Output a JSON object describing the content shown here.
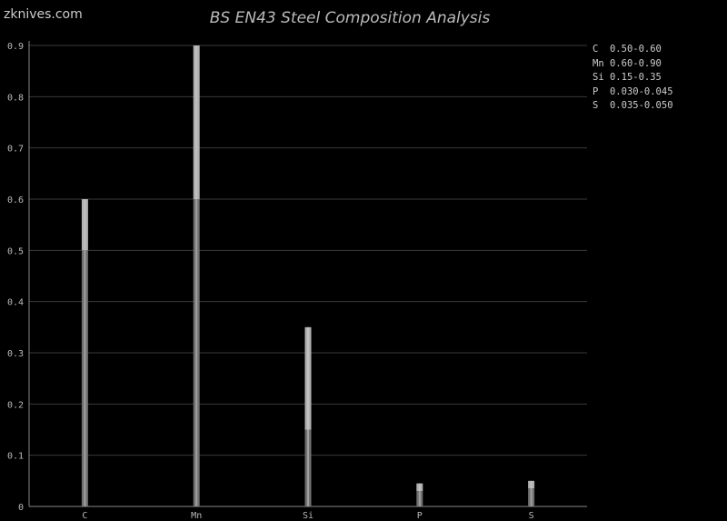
{
  "watermark": "zknives.com",
  "chart_data": {
    "type": "bar",
    "title": "BS EN43 Steel Composition Analysis",
    "categories": [
      "C",
      "Mn",
      "Si",
      "P",
      "S"
    ],
    "series": [
      {
        "role": "min",
        "values": [
          0.5,
          0.6,
          0.15,
          0.03,
          0.035
        ]
      },
      {
        "role": "max",
        "values": [
          0.6,
          0.9,
          0.35,
          0.045,
          0.05
        ]
      }
    ],
    "ylim": [
      0,
      0.9
    ],
    "yticks": [
      "0",
      "0.1",
      "0.2",
      "0.3",
      "0.4",
      "0.5",
      "0.6",
      "0.7",
      "0.8",
      "0.9"
    ],
    "grid": true,
    "legend_position": "top-right",
    "legend": [
      {
        "el": "C ",
        "range": "0.50-0.60"
      },
      {
        "el": "Mn",
        "range": "0.60-0.90"
      },
      {
        "el": "Si",
        "range": "0.15-0.35"
      },
      {
        "el": "P ",
        "range": "0.030-0.045"
      },
      {
        "el": "S ",
        "range": "0.035-0.050"
      }
    ],
    "colors": {
      "min": "#707070",
      "max": "#b0b0b0",
      "grid": "#3a3a3a",
      "axis": "#888888"
    }
  }
}
